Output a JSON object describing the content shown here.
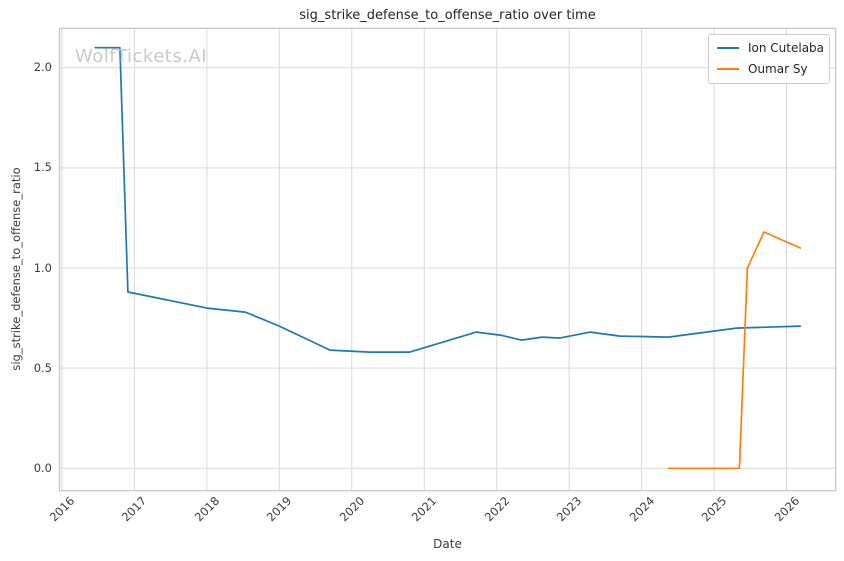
{
  "watermark": "WolfTickets.AI",
  "chart_data": {
    "type": "line",
    "title": "sig_strike_defense_to_offense_ratio over time",
    "xlabel": "Date",
    "ylabel": "sig_strike_defense_to_offense_ratio",
    "x_ticks": [
      "2016",
      "2017",
      "2018",
      "2019",
      "2020",
      "2021",
      "2022",
      "2023",
      "2024",
      "2025",
      "2026"
    ],
    "y_ticks": [
      "0.0",
      "0.5",
      "1.0",
      "1.5",
      "2.0"
    ],
    "xlim": [
      2015.966,
      2026.679
    ],
    "ylim": [
      -0.112,
      2.197
    ],
    "grid": true,
    "legend_position": "upper right",
    "colors": {
      "grid": "#d9d9d9",
      "spine": "#c4c4c4"
    },
    "series": [
      {
        "name": "Ion Cutelaba",
        "color": "#1f77b4",
        "x": [
          2016.46,
          2016.8,
          2016.91,
          2018.0,
          2018.53,
          2019.0,
          2019.7,
          2020.25,
          2020.8,
          2021.72,
          2022.05,
          2022.34,
          2022.63,
          2022.87,
          2023.29,
          2023.7,
          2024.37,
          2025.31,
          2026.19
        ],
        "y": [
          2.1,
          2.1,
          0.88,
          0.8,
          0.78,
          0.71,
          0.59,
          0.58,
          0.58,
          0.68,
          0.665,
          0.64,
          0.655,
          0.65,
          0.68,
          0.66,
          0.655,
          0.7,
          0.71
        ]
      },
      {
        "name": "Oumar Sy",
        "color": "#ff7f0e",
        "x": [
          2024.37,
          2025.35,
          2025.46,
          2025.69,
          2026.19
        ],
        "y": [
          0.0,
          0.0,
          1.0,
          1.18,
          1.1
        ]
      }
    ]
  }
}
